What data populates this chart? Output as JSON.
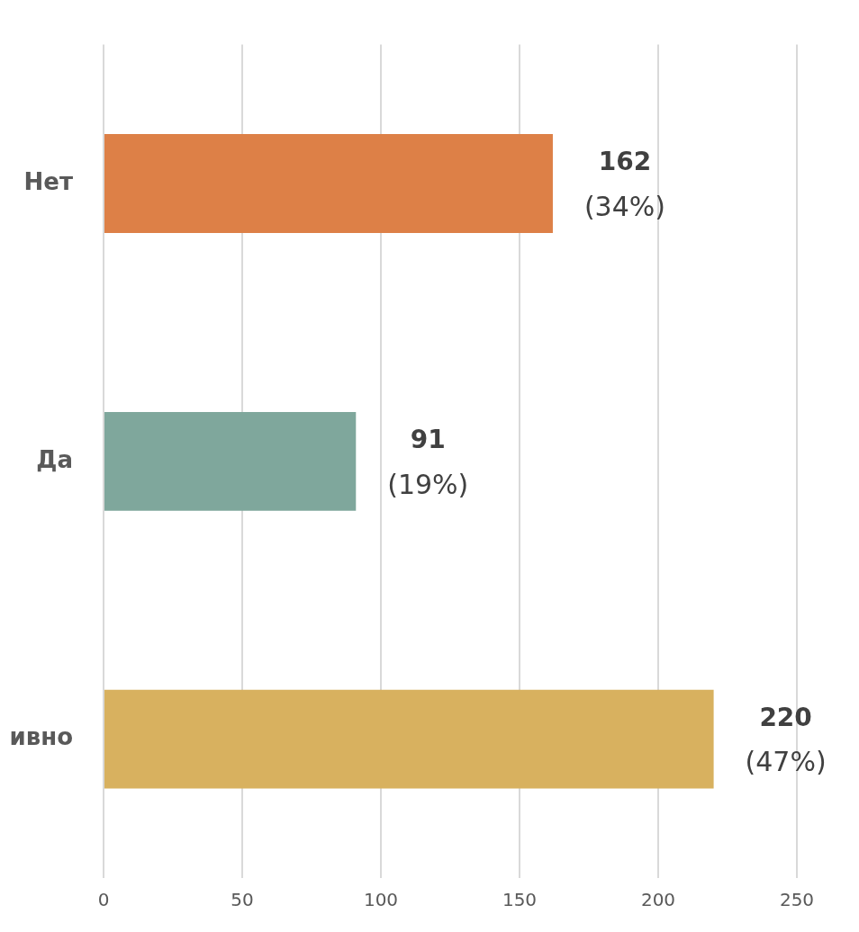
{
  "chart_data": {
    "type": "bar",
    "orientation": "horizontal",
    "categories": [
      "Нет",
      "Да",
      "ивно"
    ],
    "values": [
      162,
      91,
      220
    ],
    "colors": [
      "#dd8047",
      "#7fa79c",
      "#d8b15f"
    ],
    "value_labels": [
      "162\n(34%)",
      "91\n(19%)",
      "220\n(47%)"
    ],
    "xlim": [
      0,
      250
    ],
    "xticks": [
      0,
      50,
      100,
      150,
      200,
      250
    ],
    "grid": "x",
    "legend": false
  }
}
